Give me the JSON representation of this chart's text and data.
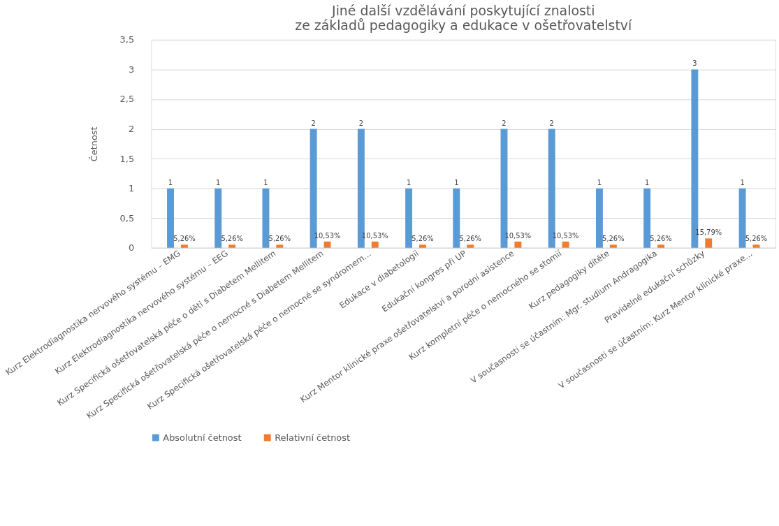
{
  "chart_data": {
    "type": "bar",
    "title": "Jiné další vzdělávání poskytující znalosti\nze základů pedagogiky a edukace v ošetřovatelství",
    "ylabel": "Četnost",
    "categories": [
      "Kurz Elektrodiagnostika nervového systému – EMG",
      "Kurz Elektrodiagnostika nervového systému – EEG",
      "Kurz Specifická ošetřovatelská péče o děti s Diabetem Mellitem",
      "Kurz Specifická ošetřovatelská péče o nemocné s Diabetem Mellitem",
      "Kurz Specifická ošetřovatelská péče o nemocné se syndromem…",
      "Edukace v diabetologii",
      "Edukační kongres při UP",
      "Kurz Mentor klinické praxe ošetřovatelství a porodní asistence",
      "Kurz kompletní péče o nemocného se stomií",
      "Kurz pedagogiky dítěte",
      "V současnosti se účastním: Mgr. studium Andragogika",
      "Pravidelné edukační schůzky",
      "V současnosti se účastním: Kurz Mentor klinické praxe…"
    ],
    "series": [
      {
        "name": "Absolutní četnost",
        "color": "#5b9bd5",
        "values": [
          1,
          1,
          1,
          2,
          2,
          1,
          1,
          2,
          2,
          1,
          1,
          3,
          1
        ],
        "value_labels": [
          "1",
          "1",
          "1",
          "2",
          "2",
          "1",
          "1",
          "2",
          "2",
          "1",
          "1",
          "3",
          "1"
        ]
      },
      {
        "name": "Relativní četnost",
        "color": "#ed7d31",
        "values": [
          0.0526,
          0.0526,
          0.0526,
          0.1053,
          0.1053,
          0.0526,
          0.0526,
          0.1053,
          0.1053,
          0.0526,
          0.0526,
          0.1579,
          0.0526
        ],
        "value_labels": [
          "5,26%",
          "5,26%",
          "5,26%",
          "10,53%",
          "10,53%",
          "5,26%",
          "5,26%",
          "10,53%",
          "10,53%",
          "5,26%",
          "5,26%",
          "15,79%",
          "5,26%"
        ]
      }
    ],
    "ylim": [
      0,
      3.5
    ],
    "yticks": [
      0,
      {
        "value": 0.5,
        "label": "0,5"
      },
      1,
      {
        "value": 1.5,
        "label": "1,5"
      },
      2,
      {
        "value": 2.5,
        "label": "2,5"
      },
      3,
      {
        "value": 3.5,
        "label": "3,5"
      }
    ],
    "grid": "y",
    "legend": "bottom"
  }
}
